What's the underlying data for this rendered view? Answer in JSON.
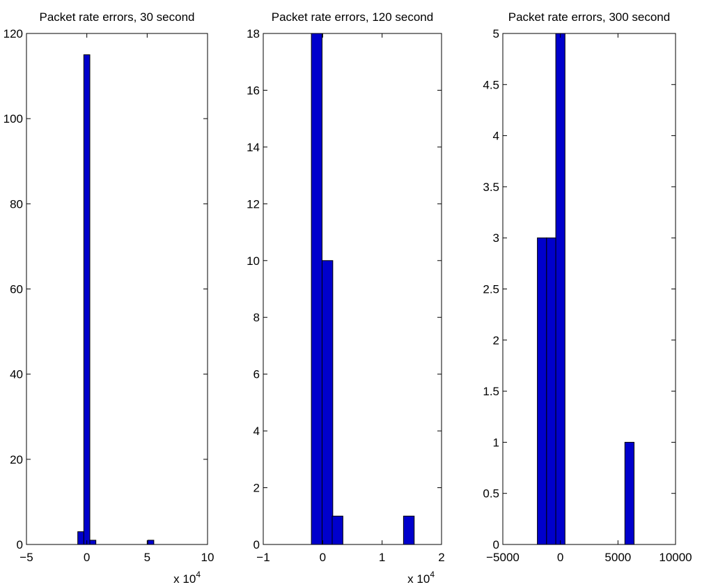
{
  "chart_data": [
    {
      "type": "bar",
      "title": "Packet rate errors, 30 second",
      "xlabel": "",
      "ylabel": "",
      "x_exponent_label": "x 10",
      "x_exponent": "4",
      "xlim": [
        -5,
        10
      ],
      "ylim": [
        0,
        120
      ],
      "xticks": [
        "−5",
        "0",
        "5",
        "10"
      ],
      "yticks": [
        "0",
        "20",
        "40",
        "60",
        "80",
        "100",
        "120"
      ],
      "bin_width": 0.5,
      "bars": [
        {
          "x": -0.5,
          "value": 3
        },
        {
          "x": 0.0,
          "value": 115
        },
        {
          "x": 0.5,
          "value": 1
        },
        {
          "x": 5.3,
          "value": 1
        }
      ],
      "bar_color": "#0000cc"
    },
    {
      "type": "bar",
      "title": "Packet rate errors, 120 second",
      "xlabel": "",
      "ylabel": "",
      "x_exponent_label": "x 10",
      "x_exponent": "4",
      "xlim": [
        -1,
        2
      ],
      "ylim": [
        0,
        18
      ],
      "xticks": [
        "−1",
        "0",
        "1",
        "2"
      ],
      "yticks": [
        "0",
        "2",
        "4",
        "6",
        "8",
        "10",
        "12",
        "14",
        "16",
        "18"
      ],
      "bin_width": 0.18,
      "bars": [
        {
          "x": -0.1,
          "value": 18
        },
        {
          "x": 0.08,
          "value": 10
        },
        {
          "x": 0.25,
          "value": 1
        },
        {
          "x": 1.45,
          "value": 1
        }
      ],
      "bar_color": "#0000cc"
    },
    {
      "type": "bar",
      "title": "Packet rate errors, 300 second",
      "xlabel": "",
      "ylabel": "",
      "xlim": [
        -5000,
        10000
      ],
      "ylim": [
        0,
        5
      ],
      "xticks": [
        "−5000",
        "0",
        "5000",
        "10000"
      ],
      "yticks": [
        "0",
        "0.5",
        "1",
        "1.5",
        "2",
        "2.5",
        "3",
        "3.5",
        "4",
        "4.5",
        "5"
      ],
      "bin_width": 800,
      "bars": [
        {
          "x": -1600,
          "value": 3
        },
        {
          "x": -800,
          "value": 3
        },
        {
          "x": 0,
          "value": 5
        },
        {
          "x": 6000,
          "value": 1
        }
      ],
      "bar_color": "#0000cc"
    }
  ]
}
